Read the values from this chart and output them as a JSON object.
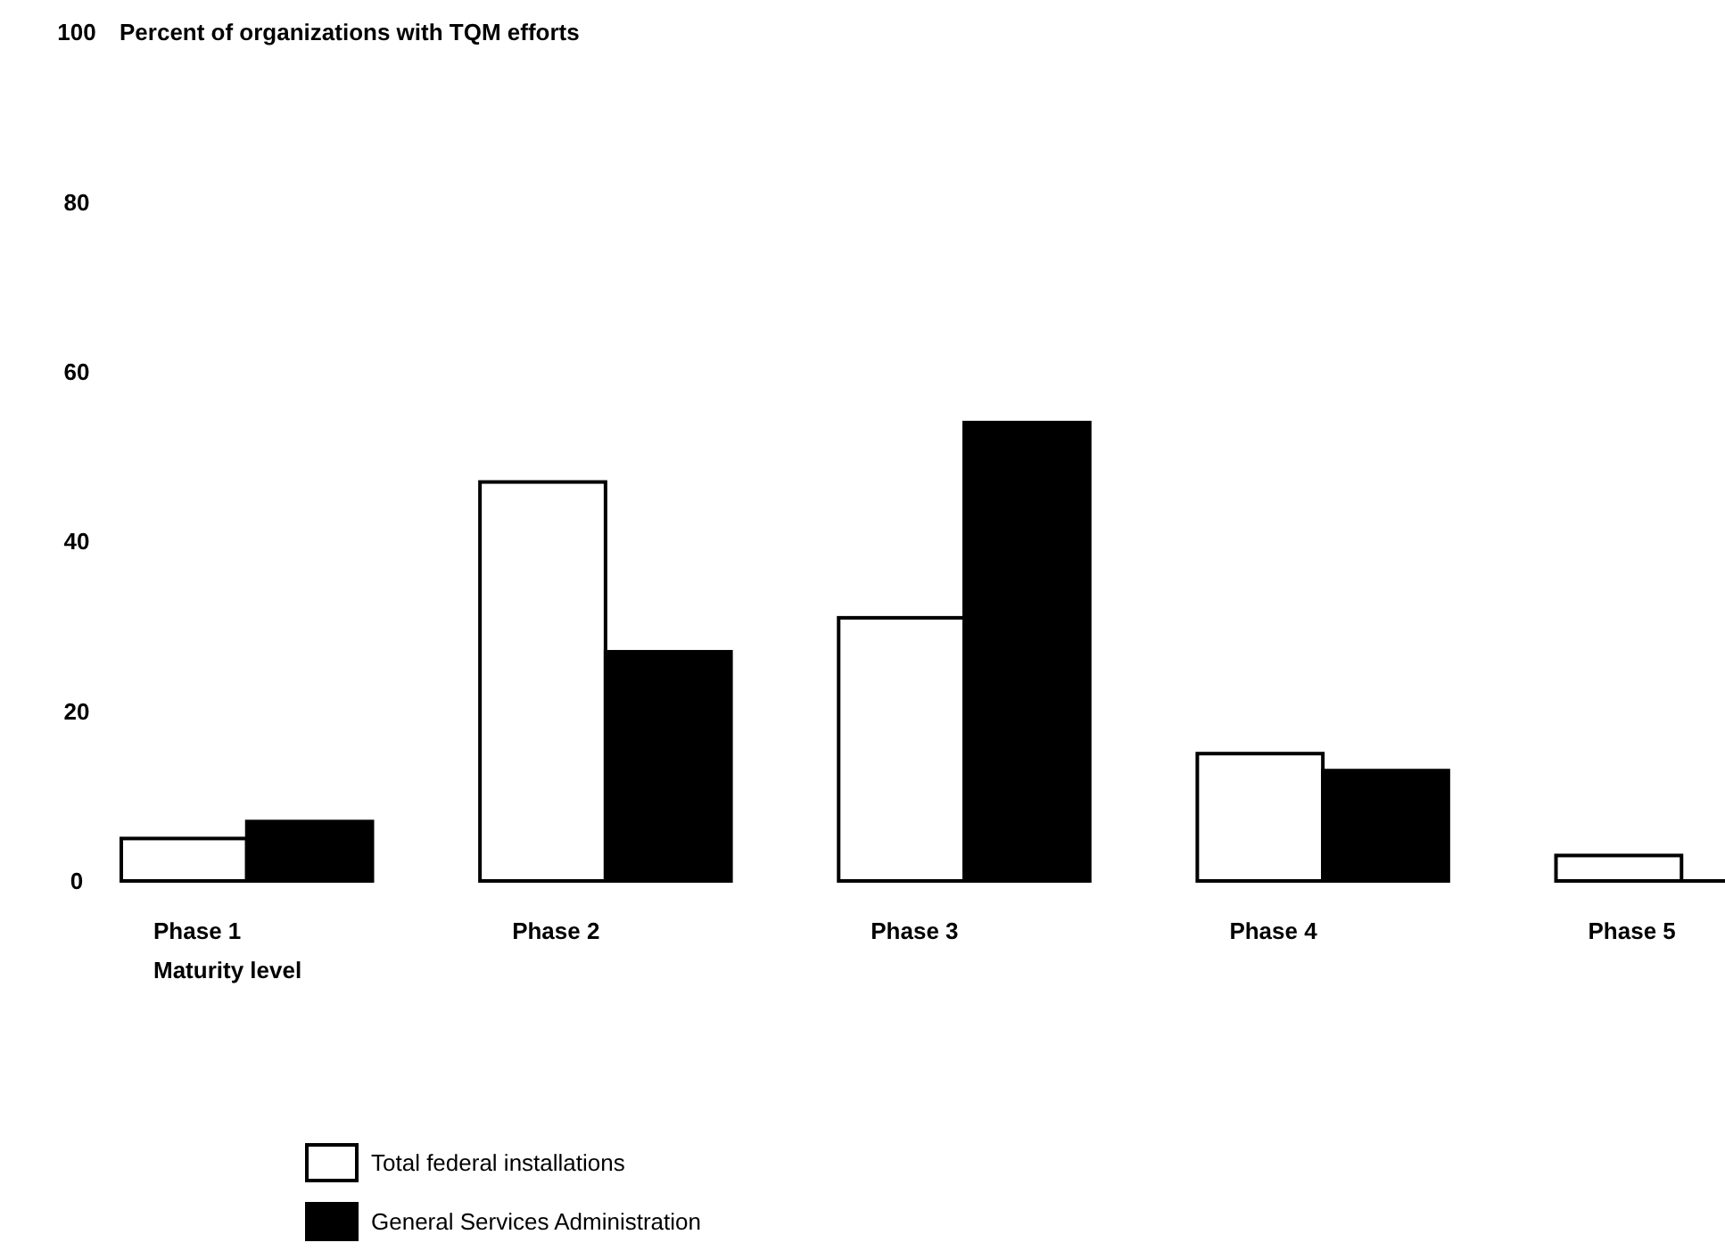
{
  "chart_data": {
    "type": "bar",
    "ylabel": "Percent of organizations with TQM efforts",
    "xlabel": "Maturity level",
    "categories": [
      "Phase 1",
      "Phase 2",
      "Phase 3",
      "Phase 4",
      "Phase 5"
    ],
    "series": [
      {
        "name": "Total federal installations",
        "color": "#ffffff",
        "values": [
          5,
          47,
          31,
          15,
          3
        ]
      },
      {
        "name": "General Services Administration",
        "color": "#000000",
        "values": [
          7,
          27,
          54,
          13,
          0
        ]
      }
    ],
    "ylim": [
      0,
      100
    ],
    "yticks": [
      0,
      20,
      40,
      60,
      80,
      100
    ],
    "grid": false,
    "legend": "bottom left"
  }
}
